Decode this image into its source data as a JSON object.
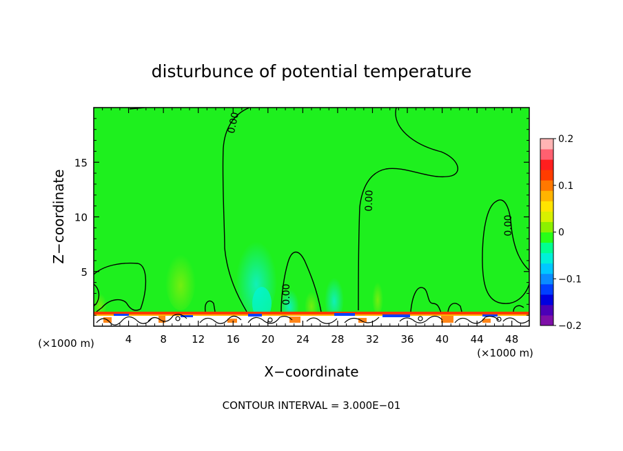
{
  "chart_data": {
    "type": "heatmap",
    "title": "disturbunce of potential temperature",
    "xlabel": "X−coordinate",
    "ylabel": "Z−coordinate",
    "x_unit_left": "(×1000 m)",
    "x_unit_right": "(×1000 m)",
    "footer": "CONTOUR INTERVAL = 3.000E−01",
    "xlim": [
      0,
      50
    ],
    "ylim": [
      0,
      20
    ],
    "x_ticks": [
      4,
      8,
      12,
      16,
      20,
      24,
      28,
      32,
      36,
      40,
      44,
      48
    ],
    "x_tick_labels": [
      "4",
      "8",
      "12",
      "16",
      "20",
      "24",
      "28",
      "32",
      "36",
      "40",
      "44",
      "48"
    ],
    "y_ticks": [
      5,
      10,
      15
    ],
    "y_tick_labels": [
      "5",
      "10",
      "15"
    ],
    "colorbar": {
      "range": [
        -0.2,
        0.2
      ],
      "tick_values": [
        0.2,
        0.1,
        0,
        -0.1,
        -0.2
      ],
      "tick_labels": [
        "0.2",
        "0.1",
        "0",
        "−0.1",
        "−0.2"
      ],
      "colors": [
        "#7e0fa8",
        "#4b00b8",
        "#0000e0",
        "#0040ff",
        "#0a8cff",
        "#00c8ff",
        "#00f0d8",
        "#00ff90",
        "#28ff18",
        "#8cf000",
        "#d8f000",
        "#ffe400",
        "#ffb400",
        "#ff7800",
        "#ff3c00",
        "#ff1e1e",
        "#ff6070",
        "#ffb4b4"
      ]
    },
    "background_value": 0.0,
    "contour_labels": [
      "0.00",
      "0.00",
      "0.00",
      "0.00"
    ]
  }
}
